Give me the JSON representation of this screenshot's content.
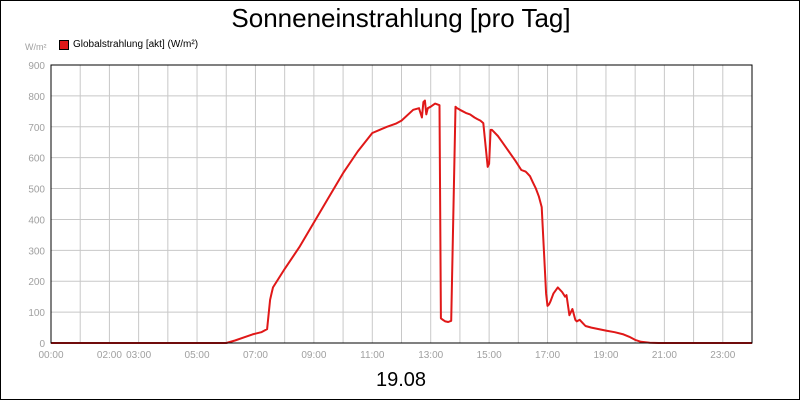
{
  "chart_data": {
    "type": "line",
    "title": "Sonneneinstrahlung [pro Tag]",
    "ylabel": "W/m²",
    "xlabel": "19.08",
    "ylim": [
      0,
      900
    ],
    "yticks": [
      0,
      100,
      200,
      300,
      400,
      500,
      600,
      700,
      800,
      900
    ],
    "xlim_hours": [
      0,
      24
    ],
    "xtick_labels": [
      "00:00",
      "02:00",
      "03:00",
      "05:00",
      "07:00",
      "09:00",
      "11:00",
      "13:00",
      "15:00",
      "17:00",
      "19:00",
      "21:00",
      "23:00"
    ],
    "xtick_hours": [
      0,
      2,
      3,
      5,
      7,
      9,
      11,
      13,
      15,
      17,
      19,
      21,
      23
    ],
    "grid": true,
    "legend_position": "top-left",
    "colors": {
      "series": "#e01818",
      "grid": "#c8c8c8",
      "axis_text": "#a0a0a0"
    },
    "series": [
      {
        "name": "Globalstrahlung [akt] (W/m²)",
        "x": [
          0,
          6.0,
          6.3,
          6.6,
          6.9,
          7.2,
          7.4,
          7.5,
          7.55,
          7.6,
          8.0,
          8.5,
          9.0,
          9.5,
          10.0,
          10.5,
          11.0,
          11.5,
          11.8,
          12.0,
          12.4,
          12.6,
          12.7,
          12.75,
          12.8,
          12.85,
          12.9,
          13.0,
          13.15,
          13.3,
          13.35,
          13.4,
          13.5,
          13.6,
          13.7,
          13.85,
          13.9,
          13.95,
          14.0,
          14.1,
          14.2,
          14.35,
          14.5,
          14.6,
          14.7,
          14.8,
          14.95,
          15.0,
          15.05,
          15.1,
          15.15,
          15.3,
          15.45,
          15.6,
          15.75,
          15.9,
          16.1,
          16.25,
          16.3,
          16.4,
          16.5,
          16.6,
          16.7,
          16.8,
          16.95,
          17.0,
          17.05,
          17.1,
          17.2,
          17.35,
          17.5,
          17.6,
          17.65,
          17.75,
          17.85,
          17.95,
          18.0,
          18.1,
          18.2,
          18.3,
          18.5,
          18.75,
          19.0,
          19.3,
          19.6,
          19.8,
          20.0,
          20.2,
          20.5,
          20.8,
          21.0,
          24.0
        ],
        "values": [
          0,
          0,
          8,
          18,
          28,
          35,
          45,
          140,
          160,
          180,
          240,
          310,
          390,
          470,
          550,
          620,
          680,
          700,
          710,
          720,
          755,
          760,
          730,
          780,
          785,
          740,
          760,
          765,
          775,
          770,
          80,
          76,
          70,
          68,
          72,
          765,
          760,
          758,
          755,
          750,
          745,
          740,
          730,
          725,
          720,
          712,
          570,
          580,
          690,
          690,
          685,
          670,
          650,
          630,
          610,
          590,
          560,
          555,
          550,
          540,
          520,
          500,
          475,
          440,
          160,
          120,
          125,
          135,
          160,
          180,
          165,
          150,
          155,
          90,
          110,
          75,
          70,
          75,
          65,
          55,
          50,
          45,
          40,
          35,
          28,
          20,
          10,
          4,
          1,
          0,
          0,
          0
        ]
      }
    ]
  }
}
